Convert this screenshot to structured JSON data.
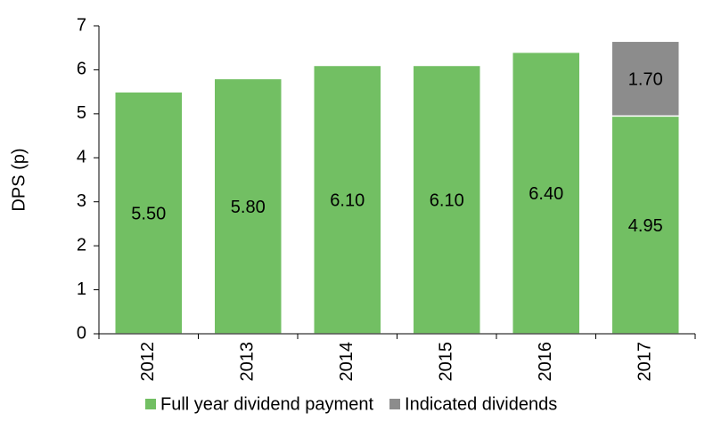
{
  "chart_data": {
    "type": "stacked_bar",
    "y_label": "DPS (p)",
    "categories": [
      "2012",
      "2013",
      "2014",
      "2015",
      "2016",
      "2017"
    ],
    "series": [
      {
        "name": "Full year dividend payment",
        "color": "#72bf63",
        "values": [
          5.5,
          5.8,
          6.1,
          6.1,
          6.4,
          4.95
        ],
        "value_labels": [
          "5.50",
          "5.80",
          "6.10",
          "6.10",
          "6.40",
          "4.95"
        ]
      },
      {
        "name": "Indicated dividends",
        "color": "#8c8c8c",
        "values": [
          null,
          null,
          null,
          null,
          null,
          1.7
        ],
        "value_labels": [
          null,
          null,
          null,
          null,
          null,
          "1.70"
        ]
      }
    ],
    "ylim": [
      0,
      7
    ],
    "yticks": [
      0,
      1,
      2,
      3,
      4,
      5,
      6,
      7
    ],
    "legend": "bottom"
  }
}
